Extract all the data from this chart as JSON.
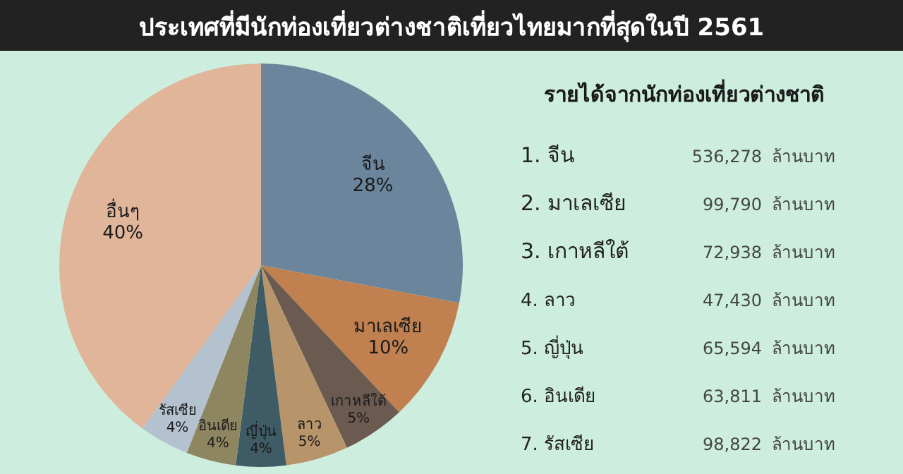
{
  "chart_data": [
    {
      "type": "pie",
      "title": "ประเทศที่มีนักท่องเที่ยวต่างชาติเที่ยวไทยมากที่สุดในปี 2561",
      "categories": [
        "จีน",
        "มาเลเซีย",
        "เกาหลีใต้",
        "ลาว",
        "ญี่ปุ่น",
        "อินเดีย",
        "รัสเซีย",
        "อื่นๆ"
      ],
      "values": [
        28,
        10,
        5,
        5,
        4,
        4,
        4,
        40
      ],
      "value_labels": [
        "28%",
        "10%",
        "5%",
        "5%",
        "4%",
        "4%",
        "4%",
        "40%"
      ],
      "data_labels": true,
      "colors": [
        "#6a859c",
        "#c0804f",
        "#6b5a4f",
        "#b8946a",
        "#3f5c66",
        "#8e8660",
        "#b4c2d0",
        "#e0b59a"
      ],
      "legend": false
    },
    {
      "type": "other",
      "title": "รายได้จากนักท่องเที่ยวต่างชาติ",
      "categories": [
        "1. จีน",
        "2. มาเลเซีย",
        "3. เกาหลีใต้",
        "4. ลาว",
        "5. ญี่ปุ่น",
        "6. อินเดีย",
        "7. รัสเซีย"
      ],
      "value_labels": [
        "536,278",
        "99,790",
        "72,938",
        "47,430",
        "65,594",
        "63,811",
        "98,822"
      ],
      "ylabel": "ล้านบาท"
    }
  ]
}
